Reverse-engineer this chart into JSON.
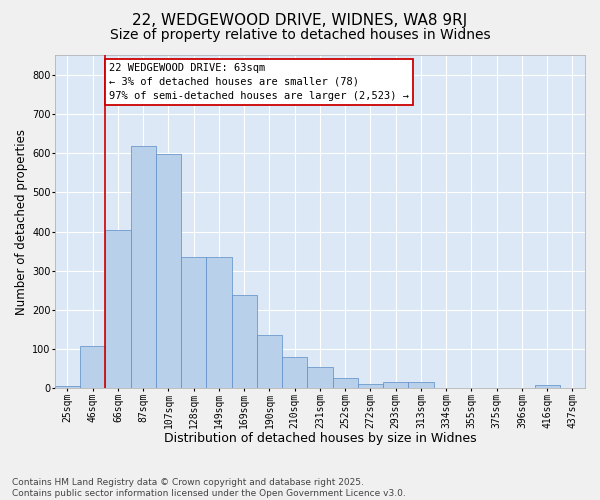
{
  "title_line1": "22, WEDGEWOOD DRIVE, WIDNES, WA8 9RJ",
  "title_line2": "Size of property relative to detached houses in Widnes",
  "xlabel": "Distribution of detached houses by size in Widnes",
  "ylabel": "Number of detached properties",
  "categories": [
    "25sqm",
    "46sqm",
    "66sqm",
    "87sqm",
    "107sqm",
    "128sqm",
    "149sqm",
    "169sqm",
    "190sqm",
    "210sqm",
    "231sqm",
    "252sqm",
    "272sqm",
    "293sqm",
    "313sqm",
    "334sqm",
    "355sqm",
    "375sqm",
    "396sqm",
    "416sqm",
    "437sqm"
  ],
  "values": [
    7,
    108,
    404,
    619,
    597,
    335,
    334,
    237,
    137,
    79,
    54,
    26,
    12,
    16,
    17,
    0,
    0,
    0,
    0,
    8,
    0
  ],
  "bar_color": "#b8d0ea",
  "bar_edge_color": "#5b8cc8",
  "vline_color": "#cc0000",
  "annotation_text": "22 WEDGEWOOD DRIVE: 63sqm\n← 3% of detached houses are smaller (78)\n97% of semi-detached houses are larger (2,523) →",
  "box_edge_color": "#cc0000",
  "ylim": [
    0,
    850
  ],
  "yticks": [
    0,
    100,
    200,
    300,
    400,
    500,
    600,
    700,
    800
  ],
  "background_color": "#dce8f5",
  "grid_color": "#ffffff",
  "footer_line1": "Contains HM Land Registry data © Crown copyright and database right 2025.",
  "footer_line2": "Contains public sector information licensed under the Open Government Licence v3.0.",
  "title_fontsize": 11,
  "subtitle_fontsize": 10,
  "xlabel_fontsize": 9,
  "ylabel_fontsize": 8.5,
  "tick_fontsize": 7,
  "annotation_fontsize": 7.5,
  "footer_fontsize": 6.5,
  "fig_bg": "#f0f0f0"
}
